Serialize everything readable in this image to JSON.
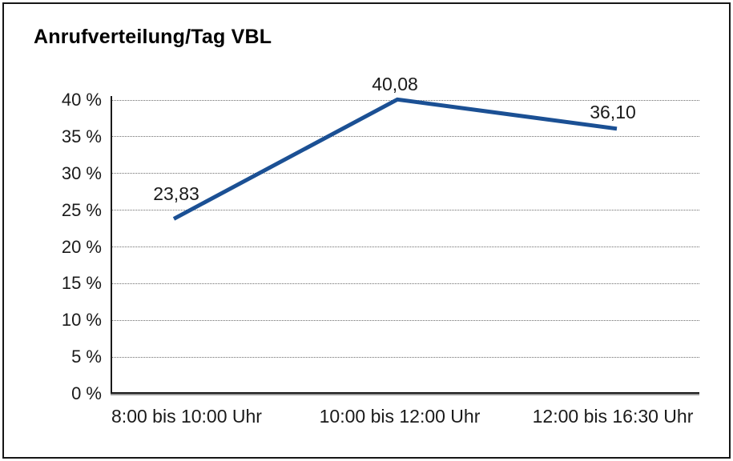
{
  "chart_data": {
    "type": "line",
    "title": "Anrufverteilung/Tag VBL",
    "categories": [
      "8:00 bis 10:00 Uhr",
      "10:00 bis 12:00 Uhr",
      "12:00 bis 16:30 Uhr"
    ],
    "values": [
      23.83,
      40.08,
      36.1
    ],
    "data_labels": [
      "23,83",
      "40,08",
      "36,10"
    ],
    "y_tick_labels": [
      "0 %",
      "5 %",
      "10 %",
      "15 %",
      "20 %",
      "25 %",
      "30 %",
      "35 %",
      "40 %"
    ],
    "y_tick_values": [
      0,
      5,
      10,
      15,
      20,
      25,
      30,
      35,
      40
    ],
    "ylim": [
      0,
      40
    ],
    "xlabel": "",
    "ylabel": "",
    "legend": "none",
    "grid": "horizontal-dotted",
    "line_color": "#1B5094",
    "grid_color": "#6e6e6e",
    "axis_color": "#1a1a1a",
    "background_color": "#ffffff"
  }
}
